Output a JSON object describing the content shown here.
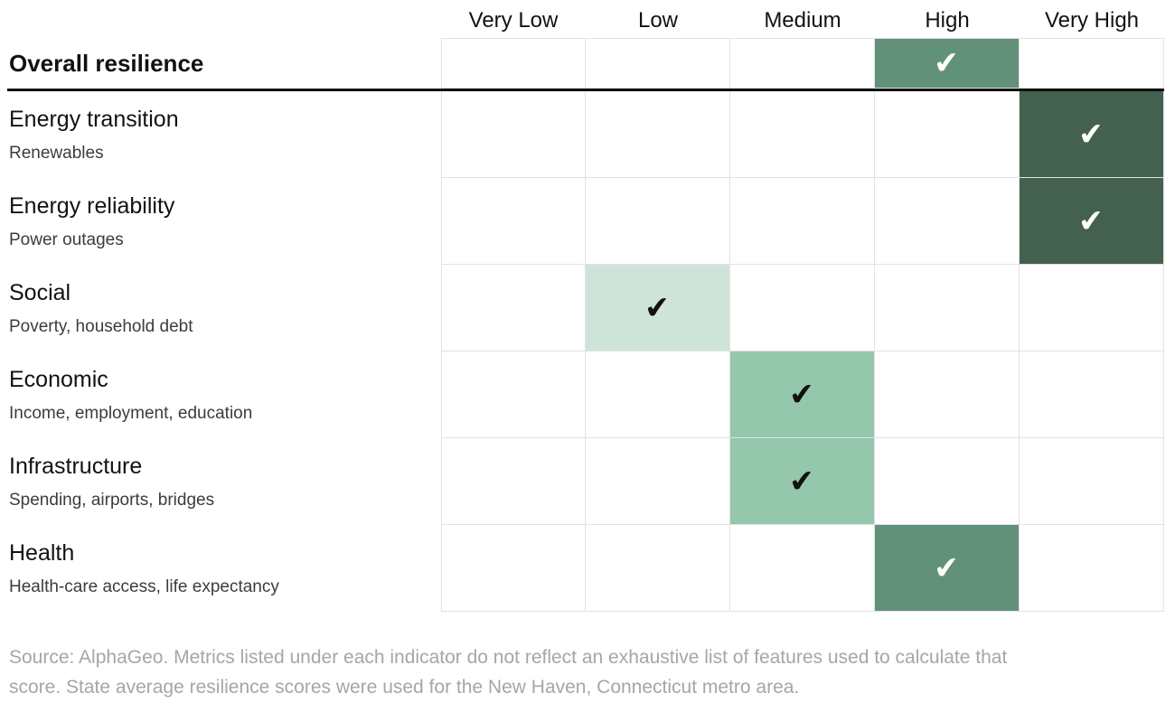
{
  "chart_data": {
    "type": "heatmap",
    "title": "",
    "columns": [
      "Very Low",
      "Low",
      "Medium",
      "High",
      "Very High"
    ],
    "overall_row": {
      "title": "Overall resilience",
      "rating": "High"
    },
    "indicator_rows": [
      {
        "title": "Energy transition",
        "subtitle": "Renewables",
        "rating": "Very High"
      },
      {
        "title": "Energy reliability",
        "subtitle": "Power outages",
        "rating": "Very High"
      },
      {
        "title": "Social",
        "subtitle": "Poverty, household debt",
        "rating": "Low"
      },
      {
        "title": "Economic",
        "subtitle": "Income, employment, education",
        "rating": "Medium"
      },
      {
        "title": "Infrastructure",
        "subtitle": "Spending, airports, bridges",
        "rating": "Medium"
      },
      {
        "title": "Health",
        "subtitle": "Health-care access, life expectancy",
        "rating": "High"
      }
    ],
    "legend_position": "none",
    "grid": "light-gray cell borders"
  },
  "colors": {
    "cell_fill": {
      "Very Low": "#e8f1ec",
      "Low": "#cfe4d9",
      "Medium": "#94c7ac",
      "High": "#629179",
      "Very High": "#44614f"
    },
    "check_color": {
      "Very Low": "#111111",
      "Low": "#111111",
      "Medium": "#111111",
      "High": "#ffffff",
      "Very High": "#ffffff"
    },
    "grid_border": "#e2e2e2",
    "divider": "#111111",
    "source_text": "#a6a6a6"
  },
  "check_glyph": "✔",
  "source": "Source: AlphaGeo. Metrics listed under each indicator do not reflect an exhaustive list of features used to calculate that score. State average resilience scores were used for the New Haven, Connecticut metro area."
}
